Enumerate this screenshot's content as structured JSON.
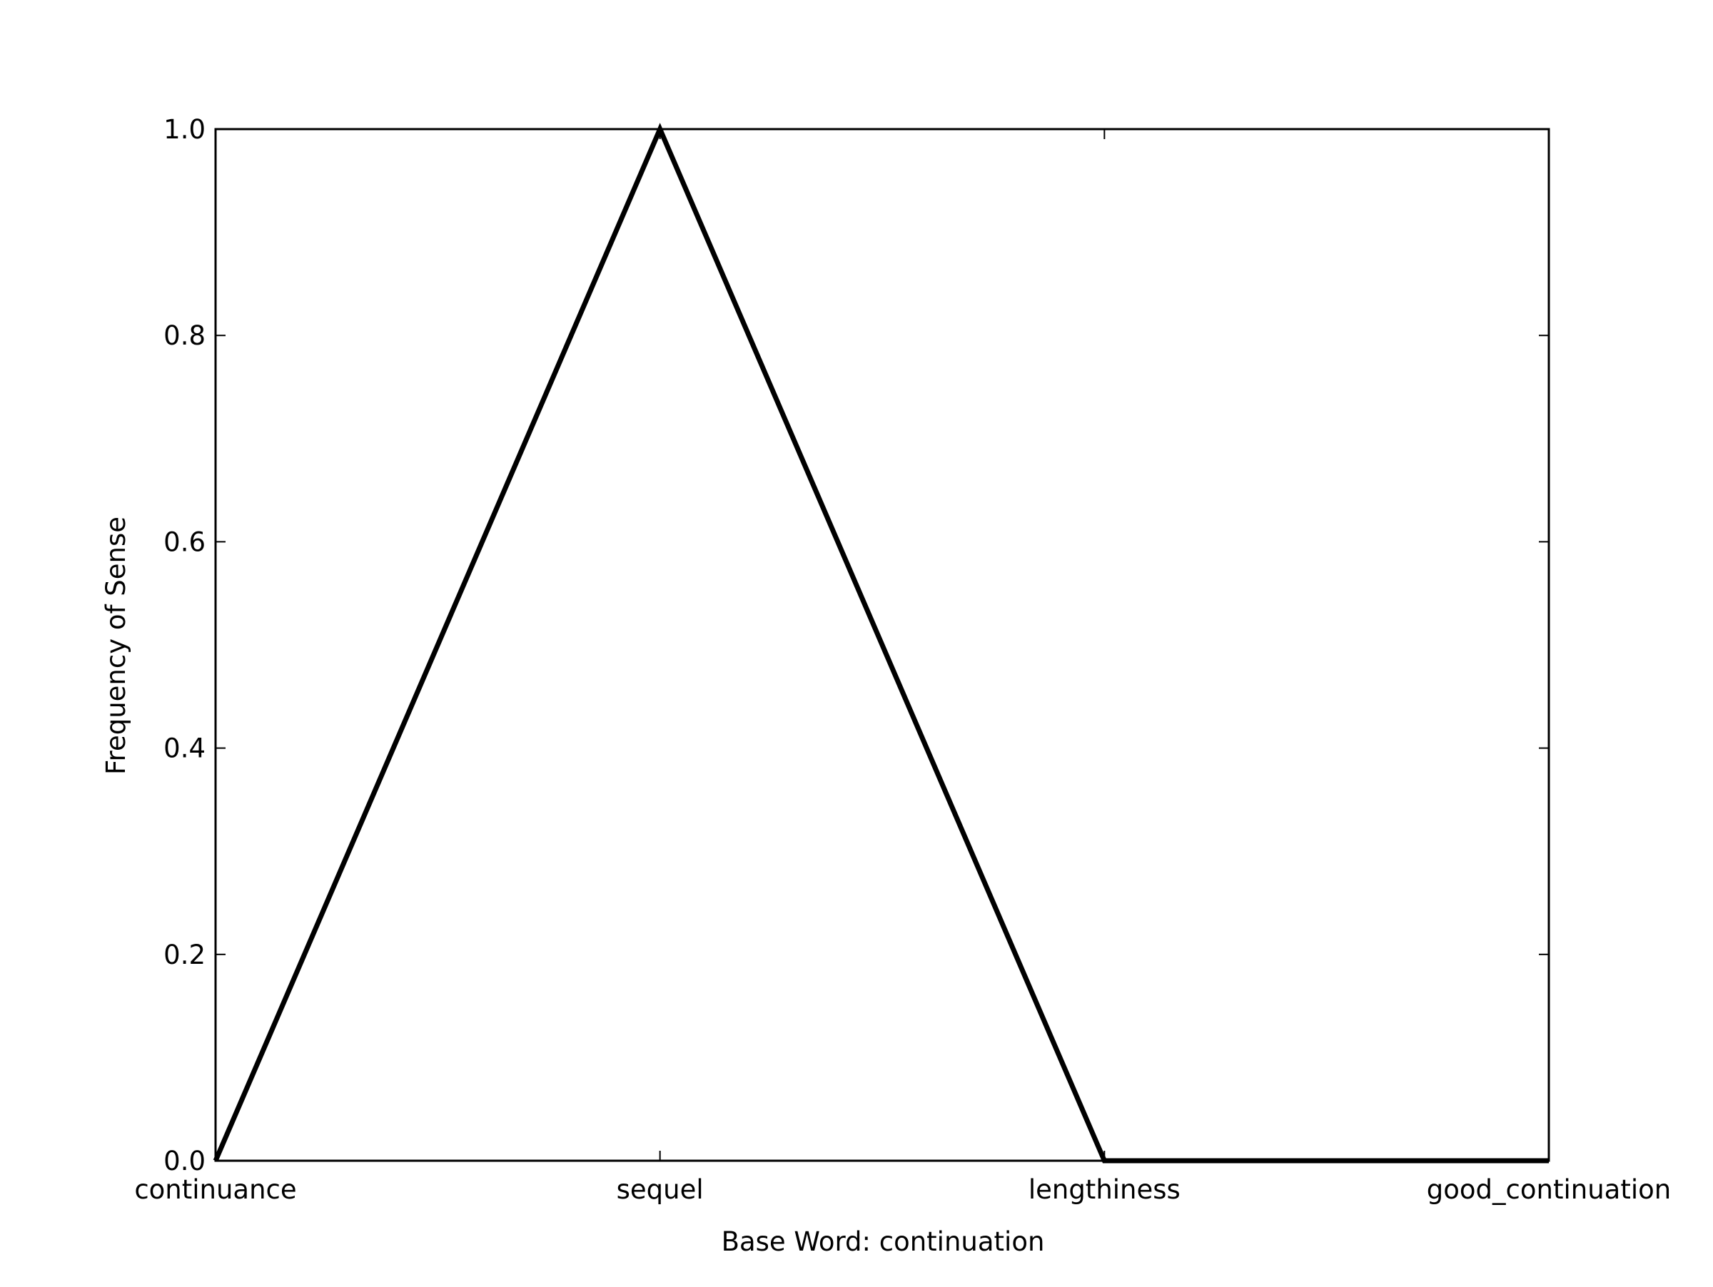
{
  "chart_data": {
    "type": "line",
    "title": "",
    "xlabel": "Base Word: continuation",
    "ylabel": "Frequency of Sense",
    "categories": [
      "continuance",
      "sequel",
      "lengthiness",
      "good_continuation"
    ],
    "series": [
      {
        "values": [
          0.0,
          1.0,
          0.0,
          0.0
        ]
      }
    ],
    "ylim": [
      0.0,
      1.0
    ],
    "yticks": [
      "0.0",
      "0.2",
      "0.4",
      "0.6",
      "0.8",
      "1.0"
    ],
    "grid": false,
    "legend": "none",
    "colors": {
      "line": "#000000",
      "axes": "#000000",
      "background": "#ffffff"
    }
  }
}
